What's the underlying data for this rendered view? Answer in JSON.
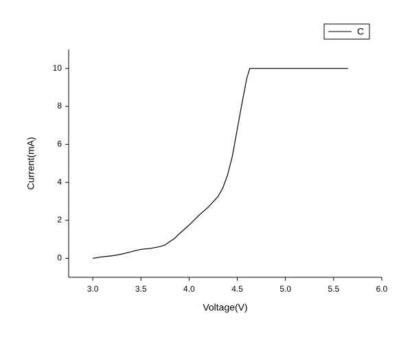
{
  "chart_data": {
    "type": "line",
    "x_label": "Voltage(V)",
    "y_label": "Current(mA)",
    "x": [
      3.0,
      3.1,
      3.2,
      3.3,
      3.4,
      3.5,
      3.6,
      3.7,
      3.75,
      3.8,
      3.85,
      3.9,
      4.0,
      4.1,
      4.2,
      4.3,
      4.35,
      4.4,
      4.45,
      4.5,
      4.55,
      4.6,
      4.63,
      5.0,
      5.5,
      5.65
    ],
    "series": [
      {
        "name": "C",
        "color": "#000000",
        "values": [
          0,
          0.08,
          0.13,
          0.22,
          0.35,
          0.47,
          0.52,
          0.62,
          0.7,
          0.88,
          1.05,
          1.3,
          1.75,
          2.25,
          2.7,
          3.25,
          3.7,
          4.4,
          5.4,
          6.8,
          8.2,
          9.5,
          10,
          10,
          10,
          10
        ]
      }
    ],
    "xlim": [
      2.75,
      6.0
    ],
    "xticks": [
      {
        "value": 3,
        "label": "3.0"
      },
      {
        "value": 3.5,
        "label": "3.5"
      },
      {
        "value": 4,
        "label": "4.0"
      },
      {
        "value": 4.5,
        "label": "4.5"
      },
      {
        "value": 5,
        "label": "5.0"
      },
      {
        "value": 5.5,
        "label": "5.5"
      },
      {
        "value": 6,
        "label": "6.0"
      }
    ],
    "ylim": [
      -1,
      11
    ],
    "yticks": [
      0,
      2,
      4,
      6,
      8,
      10
    ],
    "grid": false,
    "legend": "upper right"
  }
}
